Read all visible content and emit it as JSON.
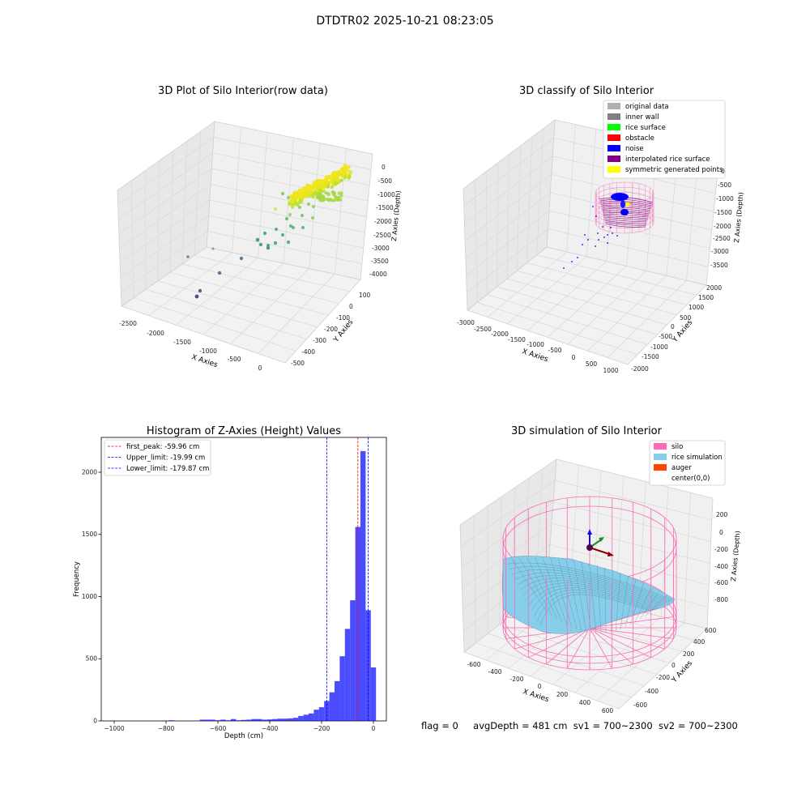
{
  "suptitle": "DTDTR02 2025-10-21 08:23:05",
  "footer": {
    "flag": "flag = 0",
    "avg_depth": "avgDepth = 481 cm",
    "sv1": "sv1 = 700~2300",
    "sv2": "sv2 = 700~2300"
  },
  "chart_data": [
    {
      "type": "scatter",
      "title": "3D Plot of Silo Interior(row data)",
      "xlabel": "X Axies",
      "ylabel": "Y Axies",
      "zlabel": "Z Axies (Depth)",
      "xticks": [
        "-2500",
        "-2000",
        "-1500",
        "-1000",
        "-500",
        "0"
      ],
      "yticks": [
        "100",
        "0",
        "-100",
        "-200",
        "-300",
        "-400",
        "-500"
      ],
      "zticks": [
        "0",
        "-500",
        "-1000",
        "-1500",
        "-2000",
        "-2500",
        "-3000",
        "-3500",
        "-4000"
      ],
      "colormap": "viridis",
      "grid": true
    },
    {
      "type": "scatter",
      "title": "3D classify of Silo Interior",
      "xlabel": "X Axies",
      "ylabel": "Y Axies",
      "zlabel": "Z Axies (Depth)",
      "xticks": [
        "-3000",
        "-2500",
        "-2000",
        "-1500",
        "-1000",
        "-500",
        "0",
        "500",
        "1000"
      ],
      "yticks": [
        "2000",
        "1500",
        "1000",
        "500",
        "0",
        "-500",
        "-1000",
        "-1500",
        "-2000"
      ],
      "zticks": [
        "0",
        "-500",
        "-1000",
        "-1500",
        "-2000",
        "-2500",
        "-3000",
        "-3500"
      ],
      "legend": [
        {
          "label": "original data",
          "color": "#b0b0b0"
        },
        {
          "label": "inner wall",
          "color": "#808080"
        },
        {
          "label": "rice surface",
          "color": "#00ff00"
        },
        {
          "label": "obstacle",
          "color": "#ff0000"
        },
        {
          "label": "noise",
          "color": "#0000ff"
        },
        {
          "label": "interpolated rice surface",
          "color": "#800080"
        },
        {
          "label": "symmetric generated points",
          "color": "#ffff00"
        }
      ],
      "legend_position": "top-right",
      "grid": true
    },
    {
      "type": "bar",
      "title": "Histogram of Z-Axies (Height) Values",
      "xlabel": "Depth (cm)",
      "ylabel": "Frequency",
      "xlim": [
        -1050,
        50
      ],
      "ylim": [
        0,
        2280
      ],
      "xticks": [
        -1000,
        -800,
        -600,
        -400,
        -200,
        0
      ],
      "yticks": [
        0,
        500,
        1000,
        1500,
        2000
      ],
      "bar_color": "#0000ff",
      "bin_width": 20,
      "bins": [
        {
          "x": -780,
          "value": 5
        },
        {
          "x": -660,
          "value": 10
        },
        {
          "x": -640,
          "value": 10
        },
        {
          "x": -620,
          "value": 10
        },
        {
          "x": -600,
          "value": 5
        },
        {
          "x": -580,
          "value": 10
        },
        {
          "x": -560,
          "value": 5
        },
        {
          "x": -540,
          "value": 15
        },
        {
          "x": -520,
          "value": 5
        },
        {
          "x": -500,
          "value": 8
        },
        {
          "x": -480,
          "value": 10
        },
        {
          "x": -460,
          "value": 15
        },
        {
          "x": -440,
          "value": 15
        },
        {
          "x": -420,
          "value": 10
        },
        {
          "x": -400,
          "value": 12
        },
        {
          "x": -380,
          "value": 15
        },
        {
          "x": -360,
          "value": 18
        },
        {
          "x": -340,
          "value": 18
        },
        {
          "x": -320,
          "value": 20
        },
        {
          "x": -300,
          "value": 25
        },
        {
          "x": -280,
          "value": 40
        },
        {
          "x": -260,
          "value": 50
        },
        {
          "x": -240,
          "value": 60
        },
        {
          "x": -220,
          "value": 90
        },
        {
          "x": -200,
          "value": 110
        },
        {
          "x": -180,
          "value": 160
        },
        {
          "x": -160,
          "value": 230
        },
        {
          "x": -140,
          "value": 320
        },
        {
          "x": -120,
          "value": 520
        },
        {
          "x": -100,
          "value": 740
        },
        {
          "x": -80,
          "value": 970
        },
        {
          "x": -60,
          "value": 1560
        },
        {
          "x": -40,
          "value": 2170
        },
        {
          "x": -20,
          "value": 890
        },
        {
          "x": 0,
          "value": 430
        }
      ],
      "vlines": [
        {
          "label": "first_peak: -59.96 cm",
          "x": -59.96,
          "color": "#ff0000"
        },
        {
          "label": "Upper_limit: -19.99 cm",
          "x": -19.99,
          "color": "#0000ff"
        },
        {
          "label": "Lower_limit: -179.87 cm",
          "x": -179.87,
          "color": "#0000ff"
        }
      ],
      "legend_position": "top-left"
    },
    {
      "type": "surface",
      "title": "3D simulation of Silo Interior",
      "xlabel": "X Axies",
      "ylabel": "Y Axies",
      "zlabel": "Z Axies (Depth)",
      "xticks": [
        "-600",
        "-400",
        "-200",
        "0",
        "200",
        "400",
        "600"
      ],
      "yticks": [
        "600",
        "400",
        "200",
        "0",
        "-200",
        "-400",
        "-600"
      ],
      "zticks": [
        "200",
        "0",
        "-200",
        "-400",
        "-600",
        "-800"
      ],
      "legend": [
        {
          "label": "silo",
          "color": "#ff69b4"
        },
        {
          "label": "rice simulation",
          "color": "#87ceeb"
        },
        {
          "label": "auger",
          "color": "#ff4500"
        },
        {
          "label": "center(0,0)",
          "color": "#ffffff"
        }
      ],
      "legend_position": "top-right",
      "grid": true
    }
  ]
}
